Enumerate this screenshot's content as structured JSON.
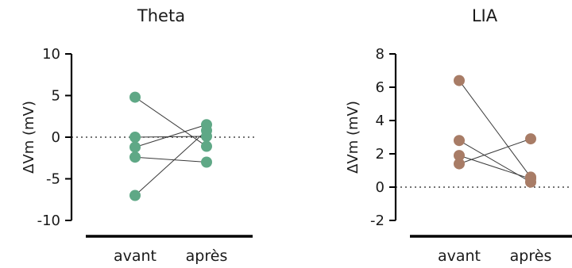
{
  "chart_data": [
    {
      "type": "scatter",
      "title": "Theta",
      "ylabel": "ΔVm (mV)",
      "categories": [
        "avant",
        "après"
      ],
      "ylim": [
        -10,
        10
      ],
      "yticks": [
        10,
        5,
        0,
        -5,
        -10
      ],
      "ytick_labels": [
        "10",
        "5",
        "0",
        "-5",
        "-10"
      ],
      "reference_line": 0,
      "marker_color": "#5fa886",
      "pairs": [
        {
          "avant": 4.8,
          "après": -1.1
        },
        {
          "avant": 0.0,
          "après": 0.1
        },
        {
          "avant": -1.2,
          "après": 1.5
        },
        {
          "avant": -2.4,
          "après": -3.0
        },
        {
          "avant": -7.0,
          "après": 0.8
        }
      ]
    },
    {
      "type": "scatter",
      "title": "LIA",
      "ylabel": "ΔVm (mV)",
      "categories": [
        "avant",
        "après"
      ],
      "ylim": [
        -2,
        8
      ],
      "yticks": [
        8,
        6,
        4,
        2,
        0,
        -2
      ],
      "ytick_labels": [
        "8",
        "6",
        "4",
        "2",
        "0",
        "-2"
      ],
      "reference_line": 0,
      "marker_color": "#a87c66",
      "pairs": [
        {
          "avant": 6.4,
          "après": 0.6
        },
        {
          "avant": 2.8,
          "après": 0.3
        },
        {
          "avant": 1.9,
          "après": 0.5
        },
        {
          "avant": 1.4,
          "après": 2.9
        }
      ]
    }
  ]
}
